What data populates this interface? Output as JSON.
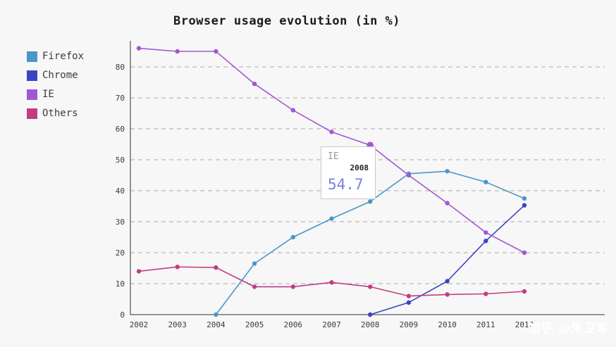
{
  "chart_data": {
    "type": "line",
    "title": "Browser usage evolution (in %)",
    "x": [
      2002,
      2003,
      2004,
      2005,
      2006,
      2007,
      2008,
      2009,
      2010,
      2011,
      2012
    ],
    "series": [
      {
        "name": "Firefox",
        "color": "#4a97c9",
        "values": [
          null,
          null,
          0,
          16.5,
          25,
          31,
          36.5,
          45.5,
          46.3,
          42.8,
          37.5
        ]
      },
      {
        "name": "Chrome",
        "color": "#3c45c0",
        "values": [
          null,
          null,
          null,
          null,
          null,
          null,
          0,
          3.9,
          10.8,
          23.8,
          35.3
        ]
      },
      {
        "name": "IE",
        "color": "#a256d4",
        "values": [
          86,
          85,
          85,
          74.5,
          66,
          59,
          54.7,
          45,
          36,
          26.5,
          20
        ]
      },
      {
        "name": "Others",
        "color": "#c13d82",
        "values": [
          14,
          15.4,
          15.2,
          9,
          9,
          10.4,
          9,
          6,
          6.5,
          6.7,
          7.5
        ]
      }
    ],
    "ylim": [
      0,
      80
    ],
    "yticks": [
      0,
      10,
      20,
      30,
      40,
      50,
      60,
      70,
      80
    ],
    "grid": "horizontal-dashed",
    "legend_position": "top-left"
  },
  "tooltip": {
    "series": "IE",
    "year": "2008",
    "value": "54.7",
    "value_color": "#7b80e0"
  },
  "watermark": {
    "text": "知乎 @朱卫军"
  }
}
